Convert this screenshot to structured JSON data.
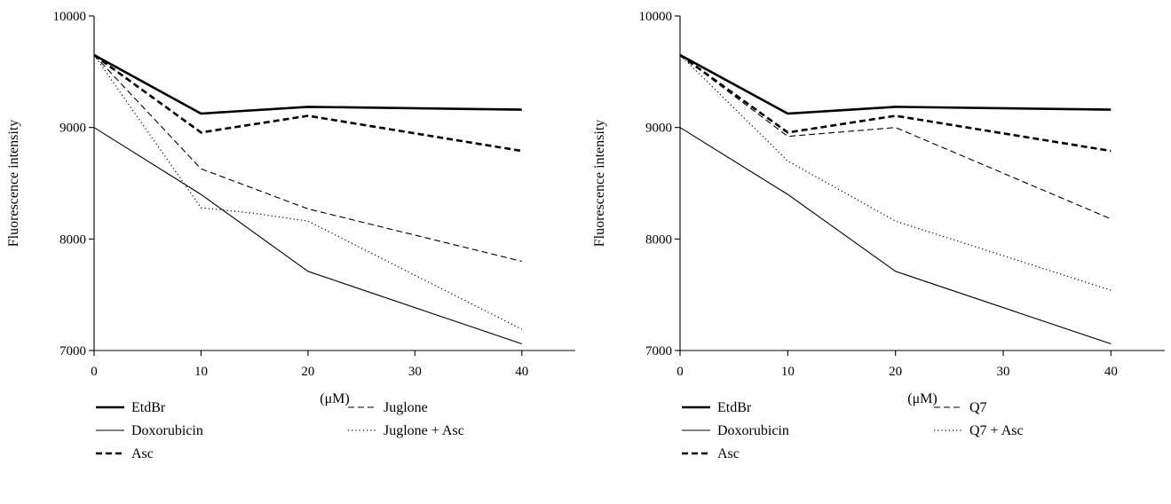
{
  "chart_data": [
    {
      "type": "line",
      "title": "",
      "xlabel": "(μM)",
      "ylabel": "Fluorescence intensity",
      "xlim": [
        0,
        45
      ],
      "ylim": [
        7000,
        10000
      ],
      "xticks": [
        0,
        10,
        20,
        30,
        40
      ],
      "yticks": [
        7000,
        8000,
        9000,
        10000
      ],
      "grid": false,
      "legend_position": "bottom",
      "series": [
        {
          "name": "EtdBr",
          "style": "thick-solid",
          "x": [
            0,
            10,
            20,
            40
          ],
          "y": [
            9650,
            9125,
            9185,
            9160
          ]
        },
        {
          "name": "Doxorubicin",
          "style": "thin-solid",
          "x": [
            0,
            10,
            20,
            40
          ],
          "y": [
            9000,
            8400,
            7710,
            7060
          ]
        },
        {
          "name": "Asc",
          "style": "thick-dashed",
          "x": [
            0,
            10,
            20,
            40
          ],
          "y": [
            9650,
            8955,
            9105,
            8790
          ]
        },
        {
          "name": "Juglone",
          "style": "thin-dashed",
          "x": [
            0,
            10,
            20,
            40
          ],
          "y": [
            9650,
            8630,
            8270,
            7800
          ]
        },
        {
          "name": "Juglone + Asc",
          "style": "dotted",
          "x": [
            0,
            10,
            15,
            20,
            40
          ],
          "y": [
            9650,
            8280,
            8230,
            8160,
            7190
          ]
        }
      ]
    },
    {
      "type": "line",
      "title": "",
      "xlabel": "(μM)",
      "ylabel": "Fluorescence intensity",
      "xlim": [
        0,
        45
      ],
      "ylim": [
        7000,
        10000
      ],
      "xticks": [
        0,
        10,
        20,
        30,
        40
      ],
      "yticks": [
        7000,
        8000,
        9000,
        10000
      ],
      "grid": false,
      "legend_position": "bottom",
      "series": [
        {
          "name": "EtdBr",
          "style": "thick-solid",
          "x": [
            0,
            10,
            20,
            40
          ],
          "y": [
            9650,
            9125,
            9185,
            9160
          ]
        },
        {
          "name": "Doxorubicin",
          "style": "thin-solid",
          "x": [
            0,
            10,
            20,
            40
          ],
          "y": [
            9000,
            8400,
            7710,
            7060
          ]
        },
        {
          "name": "Asc",
          "style": "thick-dashed",
          "x": [
            0,
            10,
            20,
            40
          ],
          "y": [
            9650,
            8955,
            9105,
            8790
          ]
        },
        {
          "name": "Q7",
          "style": "thin-dashed",
          "x": [
            0,
            10,
            20,
            40
          ],
          "y": [
            9650,
            8920,
            9000,
            8180
          ]
        },
        {
          "name": "Q7 + Asc",
          "style": "dotted",
          "x": [
            0,
            10,
            20,
            40
          ],
          "y": [
            9650,
            8700,
            8160,
            7540
          ]
        }
      ]
    }
  ]
}
